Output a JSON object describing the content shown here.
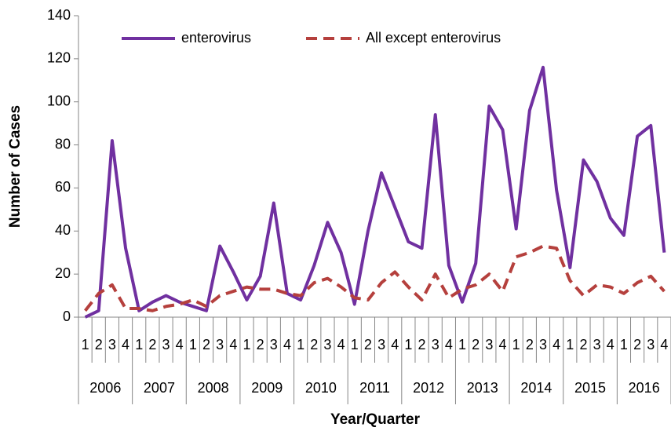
{
  "chart_data": {
    "type": "line",
    "y_label": "Number of Cases",
    "x_label": "Year/Quarter",
    "categories": [
      "1",
      "2",
      "3",
      "4",
      "1",
      "2",
      "3",
      "4",
      "1",
      "2",
      "3",
      "4",
      "1",
      "2",
      "3",
      "4",
      "1",
      "2",
      "3",
      "4",
      "1",
      "2",
      "3",
      "4",
      "1",
      "2",
      "3",
      "4",
      "1",
      "2",
      "3",
      "4",
      "1",
      "2",
      "3",
      "4",
      "1",
      "2",
      "3",
      "4",
      "1",
      "2",
      "3",
      "4"
    ],
    "year_groups": [
      "2006",
      "2007",
      "2008",
      "2009",
      "2010",
      "2011",
      "2012",
      "2013",
      "2014",
      "2015",
      "2016"
    ],
    "series": [
      {
        "name": "enterovirus",
        "color": "#7030a0",
        "dash": false,
        "values": [
          0,
          3,
          82,
          32,
          3,
          7,
          10,
          7,
          5,
          3,
          33,
          21,
          8,
          19,
          53,
          11,
          8,
          24,
          44,
          30,
          6,
          40,
          67,
          51,
          35,
          32,
          94,
          24,
          7,
          25,
          98,
          87,
          41,
          96,
          116,
          59,
          23,
          73,
          63,
          46,
          38,
          84,
          89,
          30
        ]
      },
      {
        "name": "All except enterovirus",
        "color": "#b5403d",
        "dash": true,
        "values": [
          3,
          11,
          15,
          4,
          4,
          3,
          5,
          6,
          8,
          5,
          10,
          12,
          14,
          13,
          13,
          11,
          10,
          16,
          18,
          14,
          9,
          8,
          16,
          21,
          14,
          8,
          20,
          9,
          13,
          15,
          20,
          12,
          28,
          30,
          33,
          32,
          17,
          10,
          15,
          14,
          11,
          16,
          19,
          12
        ]
      }
    ],
    "ylim": [
      0,
      140
    ],
    "yticks": [
      0,
      20,
      40,
      60,
      80,
      100,
      120,
      140
    ],
    "grid": false,
    "legend": "top"
  }
}
